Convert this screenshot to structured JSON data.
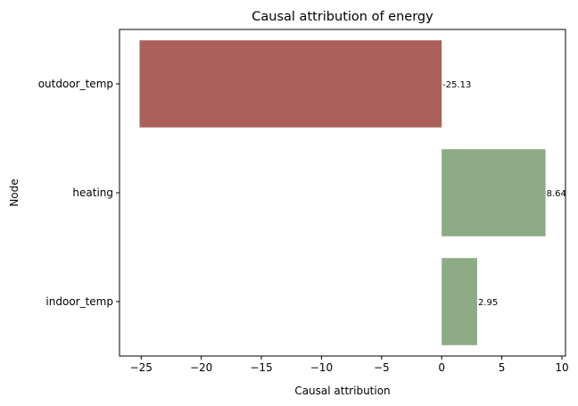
{
  "chart_data": {
    "type": "bar",
    "orientation": "horizontal",
    "title": "Causal attribution of energy",
    "xlabel": "Causal attribution",
    "ylabel": "Node",
    "xlim": [
      -26.8,
      10.3
    ],
    "xticks": [
      -25,
      -20,
      -15,
      -10,
      -5,
      0,
      5,
      10
    ],
    "xtick_labels": [
      "−25",
      "−20",
      "−15",
      "−10",
      "−5",
      "0",
      "5",
      "10"
    ],
    "grid": false,
    "legend": "none",
    "categories": [
      "outdoor_temp",
      "heating",
      "indoor_temp"
    ],
    "values": [
      -25.13,
      8.64,
      2.95
    ],
    "data_labels": [
      "-25.13",
      "8.64",
      "2.95"
    ],
    "colors": {
      "negative": "#ab605b",
      "positive": "#8cab85"
    }
  }
}
